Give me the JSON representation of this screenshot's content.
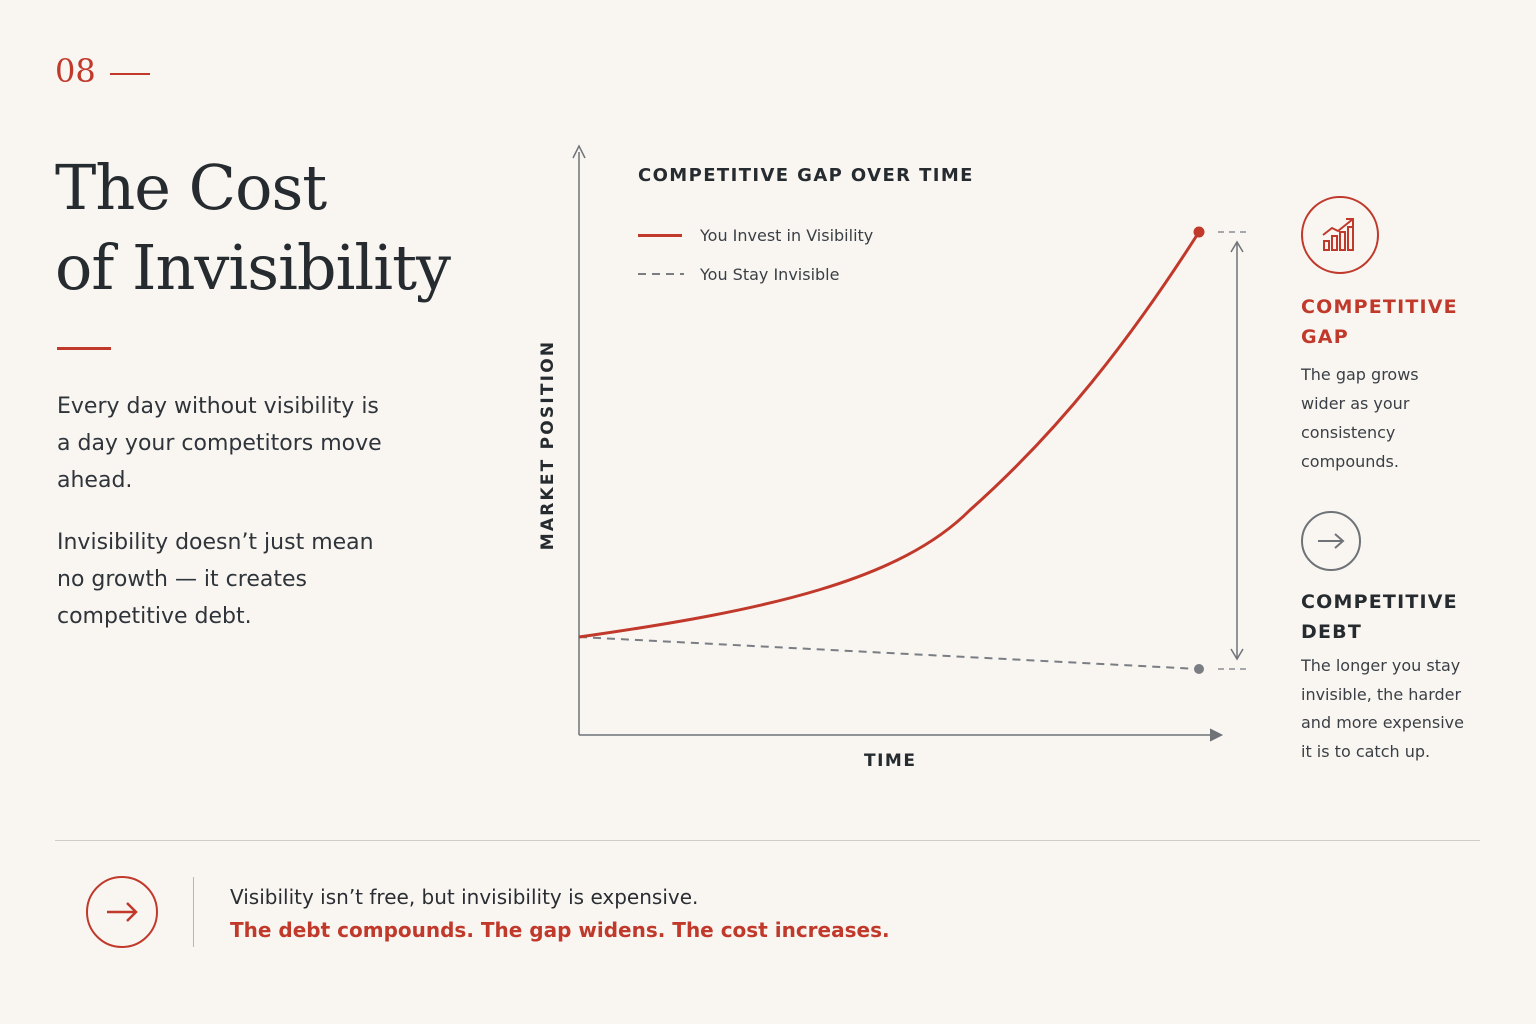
{
  "header": {
    "slide_number": "08"
  },
  "title": {
    "line1": "The Cost",
    "line2": "of Invisibility"
  },
  "intro": {
    "paragraph1": "Every day without visibility is a day your competitors move ahead.",
    "paragraph2": "Invisibility doesn’t just mean no growth — it creates competitive debt."
  },
  "chart": {
    "title": "COMPETITIVE GAP OVER TIME",
    "y_axis_label": "MARKET POSITION",
    "x_axis_label": "TIME",
    "legend": [
      {
        "label": "You Invest in Visibility",
        "style": "solid",
        "color": "#c0392b"
      },
      {
        "label": "You Stay Invisible",
        "style": "dashed",
        "color": "#7a7e83"
      }
    ]
  },
  "side_panel": {
    "gap": {
      "icon": "growth-chart-icon",
      "heading_line1": "COMPETITIVE",
      "heading_line2": "GAP",
      "body_lines": [
        "The gap grows",
        "wider as your",
        "consistency",
        "compounds."
      ]
    },
    "debt": {
      "icon": "arrow-right-icon",
      "heading_line1": "COMPETITIVE",
      "heading_line2": "DEBT",
      "body_lines": [
        "The longer you stay",
        "invisible, the harder",
        "and more expensive",
        "it is to catch up."
      ]
    }
  },
  "footer": {
    "icon": "arrow-right-icon",
    "line1": "Visibility isn’t free, but invisibility is expensive.",
    "line2": "The debt compounds. The gap widens. The cost increases."
  },
  "colors": {
    "accent": "#c0392b",
    "text": "#262b30",
    "muted": "#7a7e83",
    "background": "#f9f6f2"
  }
}
